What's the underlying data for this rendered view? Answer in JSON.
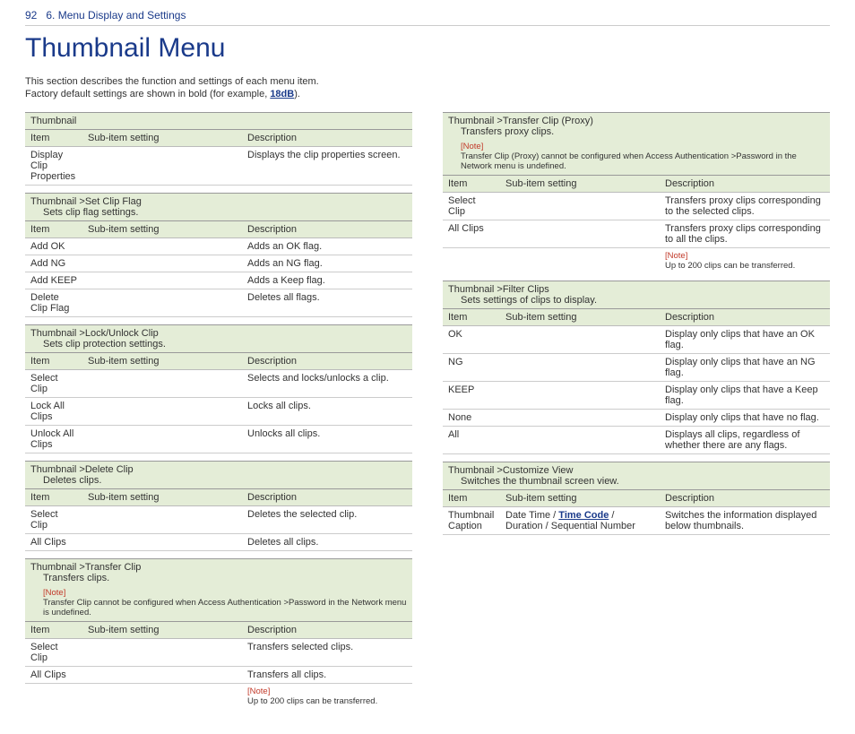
{
  "header": {
    "page_num": "92",
    "chapter": "6. Menu Display and Settings"
  },
  "title": "Thumbnail Menu",
  "intro": {
    "line1": "This section describes the function and settings of each menu item.",
    "line2_a": "Factory default settings are shown in bold (for example, ",
    "line2_bold": "18dB",
    "line2_b": ")."
  },
  "labels": {
    "item": "Item",
    "sub": "Sub-item setting",
    "desc": "Description",
    "note": "[Note]"
  },
  "left": [
    {
      "path": "Thumbnail",
      "rows": [
        {
          "item": "Display Clip Properties",
          "sub": "",
          "desc": "Displays the clip properties screen."
        }
      ]
    },
    {
      "path": "Thumbnail >Set Clip Flag",
      "desc": "Sets clip flag settings.",
      "rows": [
        {
          "item": "Add OK",
          "sub": "",
          "desc": "Adds an OK flag."
        },
        {
          "item": "Add NG",
          "sub": "",
          "desc": "Adds an NG flag."
        },
        {
          "item": "Add KEEP",
          "sub": "",
          "desc": "Adds a Keep flag."
        },
        {
          "item": "Delete Clip Flag",
          "sub": "",
          "desc": "Deletes all flags."
        }
      ]
    },
    {
      "path": "Thumbnail >Lock/Unlock Clip",
      "desc": "Sets clip protection settings.",
      "rows": [
        {
          "item": "Select Clip",
          "sub": "",
          "desc": "Selects and locks/unlocks a clip."
        },
        {
          "item": "Lock All Clips",
          "sub": "",
          "desc": "Locks all clips."
        },
        {
          "item": "Unlock All Clips",
          "sub": "",
          "desc": "Unlocks all clips."
        }
      ]
    },
    {
      "path": "Thumbnail >Delete Clip",
      "desc": "Deletes clips.",
      "rows": [
        {
          "item": "Select Clip",
          "sub": "",
          "desc": "Deletes the selected clip."
        },
        {
          "item": "All Clips",
          "sub": "",
          "desc": "Deletes all clips."
        }
      ]
    },
    {
      "path": "Thumbnail >Transfer Clip",
      "desc": "Transfers clips.",
      "note": "Transfer Clip cannot be configured when Access Authentication >Password in the Network menu is undefined.",
      "rows": [
        {
          "item": "Select Clip",
          "sub": "",
          "desc": "Transfers selected clips."
        },
        {
          "item": "All Clips",
          "sub": "",
          "desc": "Transfers all clips."
        }
      ],
      "footnote": "Up to 200 clips can be transferred."
    }
  ],
  "right": [
    {
      "path": "Thumbnail >Transfer Clip (Proxy)",
      "desc": "Transfers proxy clips.",
      "note": "Transfer Clip (Proxy) cannot be configured when Access Authentication >Password in the Network menu is undefined.",
      "rows": [
        {
          "item": "Select Clip",
          "sub": "",
          "desc": "Transfers proxy clips corresponding to the selected clips."
        },
        {
          "item": "All Clips",
          "sub": "",
          "desc": "Transfers proxy clips corresponding to all the clips."
        }
      ],
      "footnote": "Up to 200 clips can be transferred."
    },
    {
      "path": "Thumbnail >Filter Clips",
      "desc": "Sets settings of clips to display.",
      "rows": [
        {
          "item": "OK",
          "sub": "",
          "desc": "Display only clips that have an OK flag."
        },
        {
          "item": "NG",
          "sub": "",
          "desc": "Display only clips that have an NG flag."
        },
        {
          "item": "KEEP",
          "sub": "",
          "desc": "Display only clips that have a Keep flag."
        },
        {
          "item": "None",
          "sub": "",
          "desc": "Display only clips that have no flag."
        },
        {
          "item": "All",
          "sub": "",
          "desc": "Displays all clips, regardless of whether there are any flags."
        }
      ]
    },
    {
      "path": "Thumbnail >Customize View",
      "desc": "Switches the thumbnail screen view.",
      "rows": [
        {
          "item": "Thumbnail Caption",
          "sub_pre": "Date Time / ",
          "sub_bold": "Time Code",
          "sub_post": " / Duration / Sequential Number",
          "desc": "Switches the information displayed below thumbnails."
        }
      ]
    }
  ]
}
